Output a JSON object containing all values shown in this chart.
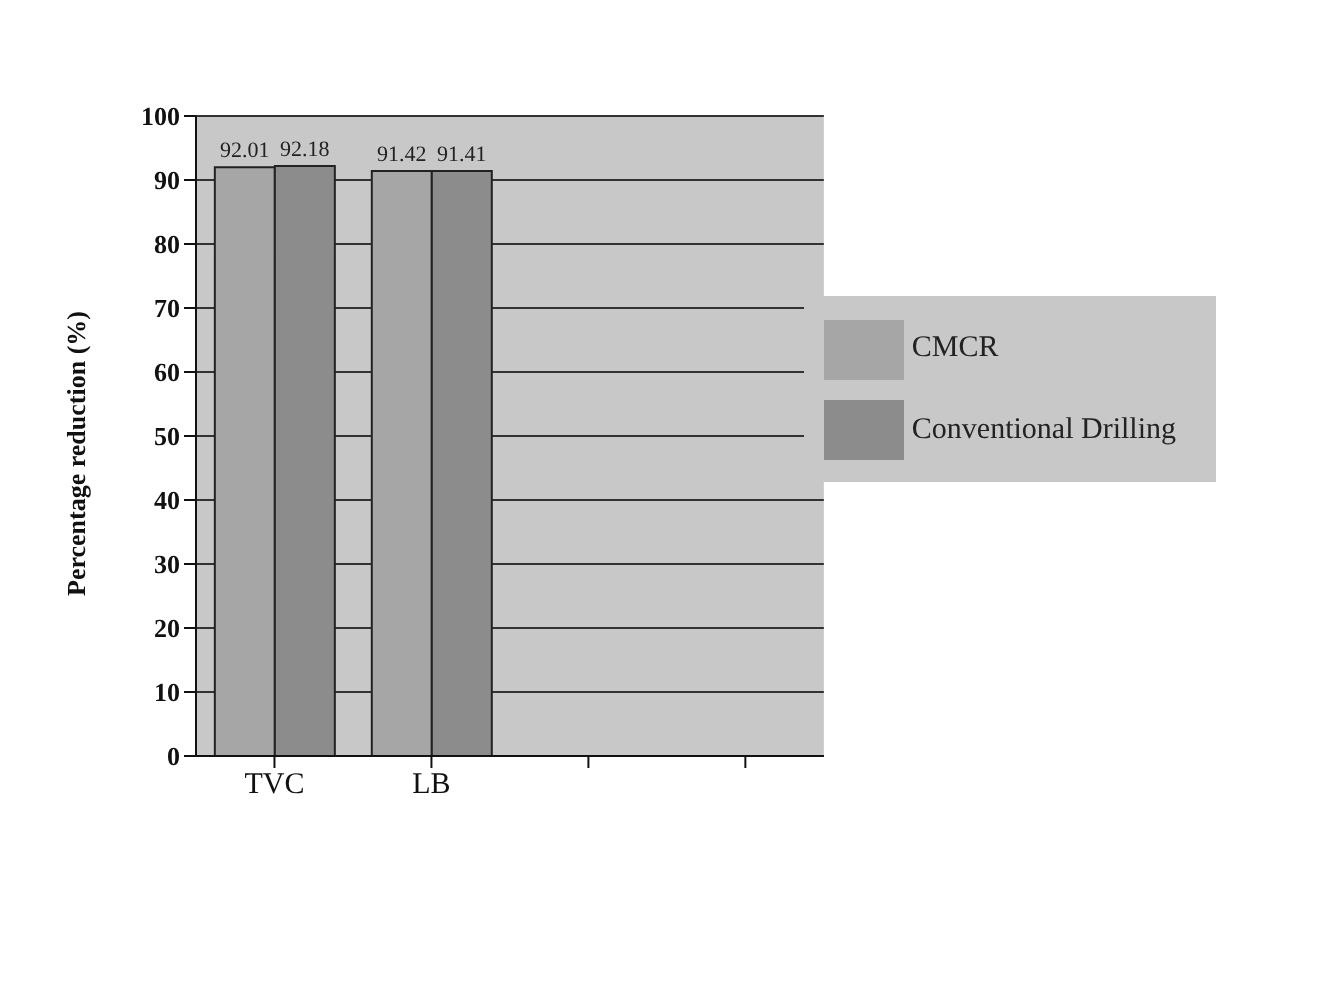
{
  "chart_data": {
    "type": "bar",
    "ylabel": "Percentage reduction (%)",
    "categories": [
      "TVC",
      "LB",
      null,
      null
    ],
    "series": [
      {
        "name": "CMCR",
        "color": "#a6a6a6",
        "values": [
          92.01,
          91.42,
          null,
          null
        ]
      },
      {
        "name": "Conventional Drilling",
        "color": "#8c8c8c",
        "values": [
          92.18,
          91.41,
          null,
          null
        ]
      }
    ],
    "ylim": [
      0,
      100
    ],
    "yticks": [
      0,
      10,
      20,
      30,
      40,
      50,
      60,
      70,
      80,
      90,
      100
    ],
    "grid": "y",
    "legend": "right",
    "data_labels": true
  }
}
